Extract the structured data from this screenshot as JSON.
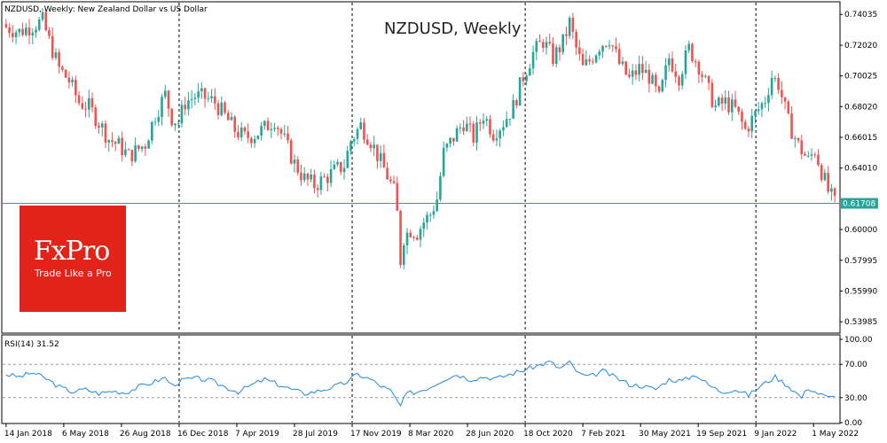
{
  "header": {
    "instrument_line": "NZDUSD, Weekly:  New Zealand Dollar vs US Dollar",
    "big_title": "NZDUSD, Weekly"
  },
  "brand": {
    "logo": "FxPro",
    "tagline": "Trade Like a Pro",
    "color": "#e2231a"
  },
  "colors": {
    "bull": "#26a69a",
    "bear": "#ef5350",
    "rsi_line": "#1e88e5",
    "price_line": "#26a69a",
    "price_badge": "#26a69a"
  },
  "chart_data": [
    {
      "type": "candlestick",
      "title": "NZDUSD, Weekly",
      "xlabel": "",
      "ylabel": "",
      "ylim": [
        0.533,
        0.748
      ],
      "y_ticks": [
        0.74035,
        0.7202,
        0.70025,
        0.6802,
        0.66015,
        0.6401,
        0.62005,
        0.6,
        0.57995,
        0.5599,
        0.53985
      ],
      "x_tick_labels": [
        "14 Jan 2018",
        "6 May 2018",
        "26 Aug 2018",
        "16 Dec 2018",
        "7 Apr 2019",
        "28 Jul 2019",
        "17 Nov 2019",
        "8 Mar 2020",
        "28 Jun 2020",
        "18 Oct 2020",
        "7 Feb 2021",
        "30 May 2021",
        "19 Sep 2021",
        "9 Jan 2022",
        "1 May 2022"
      ],
      "period_separators": [
        "16 Dec 2018",
        "17 Nov 2019",
        "18 Oct 2020",
        "9 Jan 2022"
      ],
      "current_price": 0.61708,
      "close_path": [
        {
          "week": 0,
          "close": 0.732
        },
        {
          "week": 4,
          "close": 0.729
        },
        {
          "week": 8,
          "close": 0.733
        },
        {
          "week": 11,
          "close": 0.736
        },
        {
          "week": 13,
          "close": 0.723
        },
        {
          "week": 16,
          "close": 0.705
        },
        {
          "week": 19,
          "close": 0.697
        },
        {
          "week": 22,
          "close": 0.683
        },
        {
          "week": 25,
          "close": 0.68
        },
        {
          "week": 28,
          "close": 0.67
        },
        {
          "week": 31,
          "close": 0.659
        },
        {
          "week": 34,
          "close": 0.655
        },
        {
          "week": 37,
          "close": 0.648
        },
        {
          "week": 39,
          "close": 0.651
        },
        {
          "week": 42,
          "close": 0.656
        },
        {
          "week": 45,
          "close": 0.675
        },
        {
          "week": 48,
          "close": 0.688
        },
        {
          "week": 50,
          "close": 0.673
        },
        {
          "week": 52,
          "close": 0.67
        },
        {
          "week": 54,
          "close": 0.683
        },
        {
          "week": 57,
          "close": 0.687
        },
        {
          "week": 60,
          "close": 0.686
        },
        {
          "week": 63,
          "close": 0.683
        },
        {
          "week": 66,
          "close": 0.674
        },
        {
          "week": 69,
          "close": 0.665
        },
        {
          "week": 72,
          "close": 0.66
        },
        {
          "week": 75,
          "close": 0.662
        },
        {
          "week": 78,
          "close": 0.666
        },
        {
          "week": 81,
          "close": 0.672
        },
        {
          "week": 84,
          "close": 0.658
        },
        {
          "week": 87,
          "close": 0.643
        },
        {
          "week": 90,
          "close": 0.633
        },
        {
          "week": 93,
          "close": 0.629
        },
        {
          "week": 96,
          "close": 0.633
        },
        {
          "week": 99,
          "close": 0.638
        },
        {
          "week": 102,
          "close": 0.642
        },
        {
          "week": 104,
          "close": 0.658
        },
        {
          "week": 107,
          "close": 0.668
        },
        {
          "week": 110,
          "close": 0.658
        },
        {
          "week": 113,
          "close": 0.644
        },
        {
          "week": 115,
          "close": 0.635
        },
        {
          "week": 117,
          "close": 0.625
        },
        {
          "week": 118,
          "close": 0.61
        },
        {
          "week": 119,
          "close": 0.58
        },
        {
          "week": 120,
          "close": 0.595
        },
        {
          "week": 122,
          "close": 0.6
        },
        {
          "week": 124,
          "close": 0.598
        },
        {
          "week": 126,
          "close": 0.605
        },
        {
          "week": 128,
          "close": 0.61
        },
        {
          "week": 130,
          "close": 0.62
        },
        {
          "week": 132,
          "close": 0.65
        },
        {
          "week": 135,
          "close": 0.66
        },
        {
          "week": 138,
          "close": 0.67
        },
        {
          "week": 141,
          "close": 0.66
        },
        {
          "week": 144,
          "close": 0.675
        },
        {
          "week": 147,
          "close": 0.663
        },
        {
          "week": 150,
          "close": 0.67
        },
        {
          "week": 153,
          "close": 0.68
        },
        {
          "week": 156,
          "close": 0.7
        },
        {
          "week": 159,
          "close": 0.715
        },
        {
          "week": 162,
          "close": 0.723
        },
        {
          "week": 165,
          "close": 0.712
        },
        {
          "week": 168,
          "close": 0.722
        },
        {
          "week": 170,
          "close": 0.735
        },
        {
          "week": 172,
          "close": 0.718
        },
        {
          "week": 174,
          "close": 0.705
        },
        {
          "week": 176,
          "close": 0.71
        },
        {
          "week": 179,
          "close": 0.72
        },
        {
          "week": 182,
          "close": 0.725
        },
        {
          "week": 185,
          "close": 0.708
        },
        {
          "week": 188,
          "close": 0.698
        },
        {
          "week": 191,
          "close": 0.705
        },
        {
          "week": 194,
          "close": 0.7
        },
        {
          "week": 197,
          "close": 0.685
        },
        {
          "week": 200,
          "close": 0.712
        },
        {
          "week": 203,
          "close": 0.7
        },
        {
          "week": 206,
          "close": 0.718
        },
        {
          "week": 209,
          "close": 0.707
        },
        {
          "week": 212,
          "close": 0.69
        },
        {
          "week": 214,
          "close": 0.68
        },
        {
          "week": 217,
          "close": 0.683
        },
        {
          "week": 220,
          "close": 0.678
        },
        {
          "week": 223,
          "close": 0.665
        },
        {
          "week": 226,
          "close": 0.675
        },
        {
          "week": 229,
          "close": 0.685
        },
        {
          "week": 231,
          "close": 0.7
        },
        {
          "week": 233,
          "close": 0.695
        },
        {
          "week": 236,
          "close": 0.67
        },
        {
          "week": 239,
          "close": 0.655
        },
        {
          "week": 242,
          "close": 0.645
        },
        {
          "week": 244,
          "close": 0.652
        },
        {
          "week": 246,
          "close": 0.638
        },
        {
          "week": 248,
          "close": 0.625
        },
        {
          "week": 250,
          "close": 0.617
        }
      ]
    },
    {
      "type": "line",
      "title": "RSI(14) 31.52",
      "ylim": [
        0,
        100
      ],
      "y_ticks": [
        100.0,
        70.0,
        30.0,
        0.0
      ],
      "levels": [
        70,
        30
      ],
      "last_value": 31.52,
      "series": [
        {
          "name": "",
          "points": [
            {
              "week": 0,
              "value": 58
            },
            {
              "week": 4,
              "value": 55
            },
            {
              "week": 8,
              "value": 60
            },
            {
              "week": 12,
              "value": 53
            },
            {
              "week": 16,
              "value": 43
            },
            {
              "week": 20,
              "value": 37
            },
            {
              "week": 24,
              "value": 40
            },
            {
              "week": 28,
              "value": 35
            },
            {
              "week": 32,
              "value": 38
            },
            {
              "week": 36,
              "value": 36
            },
            {
              "week": 40,
              "value": 43
            },
            {
              "week": 44,
              "value": 48
            },
            {
              "week": 48,
              "value": 54
            },
            {
              "week": 50,
              "value": 45
            },
            {
              "week": 54,
              "value": 52
            },
            {
              "week": 58,
              "value": 53
            },
            {
              "week": 62,
              "value": 50
            },
            {
              "week": 66,
              "value": 43
            },
            {
              "week": 70,
              "value": 37
            },
            {
              "week": 74,
              "value": 45
            },
            {
              "week": 78,
              "value": 52
            },
            {
              "week": 82,
              "value": 46
            },
            {
              "week": 86,
              "value": 40
            },
            {
              "week": 90,
              "value": 35
            },
            {
              "week": 94,
              "value": 38
            },
            {
              "week": 98,
              "value": 42
            },
            {
              "week": 102,
              "value": 47
            },
            {
              "week": 106,
              "value": 58
            },
            {
              "week": 110,
              "value": 52
            },
            {
              "week": 113,
              "value": 44
            },
            {
              "week": 116,
              "value": 38
            },
            {
              "week": 119,
              "value": 20
            },
            {
              "week": 121,
              "value": 35
            },
            {
              "week": 124,
              "value": 37
            },
            {
              "week": 128,
              "value": 43
            },
            {
              "week": 132,
              "value": 52
            },
            {
              "week": 136,
              "value": 58
            },
            {
              "week": 140,
              "value": 52
            },
            {
              "week": 144,
              "value": 55
            },
            {
              "week": 148,
              "value": 53
            },
            {
              "week": 152,
              "value": 58
            },
            {
              "week": 156,
              "value": 63
            },
            {
              "week": 160,
              "value": 68
            },
            {
              "week": 164,
              "value": 73
            },
            {
              "week": 167,
              "value": 65
            },
            {
              "week": 170,
              "value": 72
            },
            {
              "week": 173,
              "value": 58
            },
            {
              "week": 176,
              "value": 55
            },
            {
              "week": 180,
              "value": 62
            },
            {
              "week": 184,
              "value": 54
            },
            {
              "week": 188,
              "value": 46
            },
            {
              "week": 192,
              "value": 44
            },
            {
              "week": 196,
              "value": 40
            },
            {
              "week": 200,
              "value": 52
            },
            {
              "week": 204,
              "value": 50
            },
            {
              "week": 208,
              "value": 58
            },
            {
              "week": 212,
              "value": 45
            },
            {
              "week": 216,
              "value": 37
            },
            {
              "week": 220,
              "value": 40
            },
            {
              "week": 224,
              "value": 33
            },
            {
              "week": 228,
              "value": 45
            },
            {
              "week": 232,
              "value": 55
            },
            {
              "week": 236,
              "value": 44
            },
            {
              "week": 240,
              "value": 30
            },
            {
              "week": 242,
              "value": 42
            },
            {
              "week": 245,
              "value": 35
            },
            {
              "week": 248,
              "value": 30
            },
            {
              "week": 250,
              "value": 31.52
            }
          ]
        }
      ]
    }
  ],
  "ui": {
    "price_badge_label": "0.61708",
    "rsi_label": "RSI(14) 31.52"
  }
}
